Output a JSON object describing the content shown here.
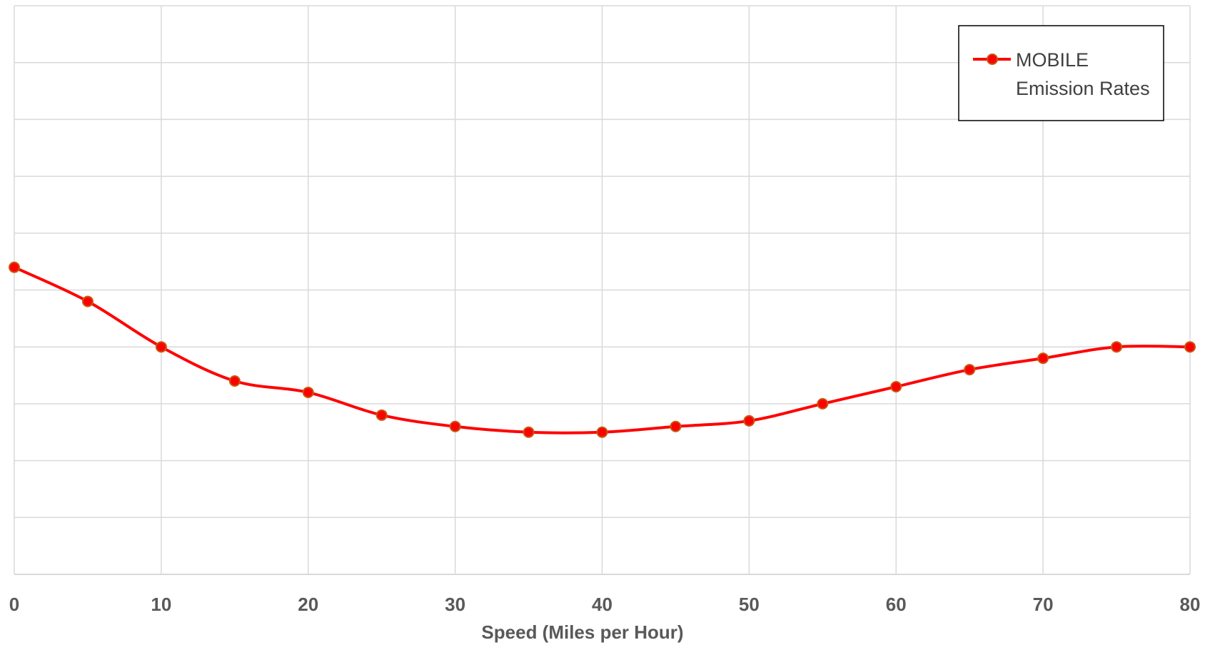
{
  "chart_data": {
    "type": "line",
    "title": "",
    "xlabel": "Speed (Miles per Hour)",
    "ylabel": "",
    "x": [
      0,
      5,
      10,
      15,
      20,
      25,
      30,
      35,
      40,
      45,
      50,
      55,
      60,
      65,
      70,
      75,
      80
    ],
    "series": [
      {
        "name": "MOBILE Emission Rates",
        "values": [
          5.4,
          4.8,
          4.0,
          3.4,
          3.2,
          2.8,
          2.6,
          2.5,
          2.5,
          2.6,
          2.7,
          3.0,
          3.3,
          3.6,
          3.8,
          4.0,
          4.0
        ],
        "color": "#ff0000",
        "marker_fill": "#ff0000",
        "marker_edge": "#c55a11"
      }
    ],
    "xlim": [
      0,
      80
    ],
    "ylim": [
      0,
      10
    ],
    "xticks": [
      "0",
      "10",
      "20",
      "30",
      "40",
      "50",
      "60",
      "70",
      "80"
    ],
    "grid": true,
    "legend_position": "top-right",
    "smooth": true,
    "colors": {
      "grid": "#d9d9d9",
      "tick_text": "#595959",
      "legend_border": "#000000"
    }
  }
}
